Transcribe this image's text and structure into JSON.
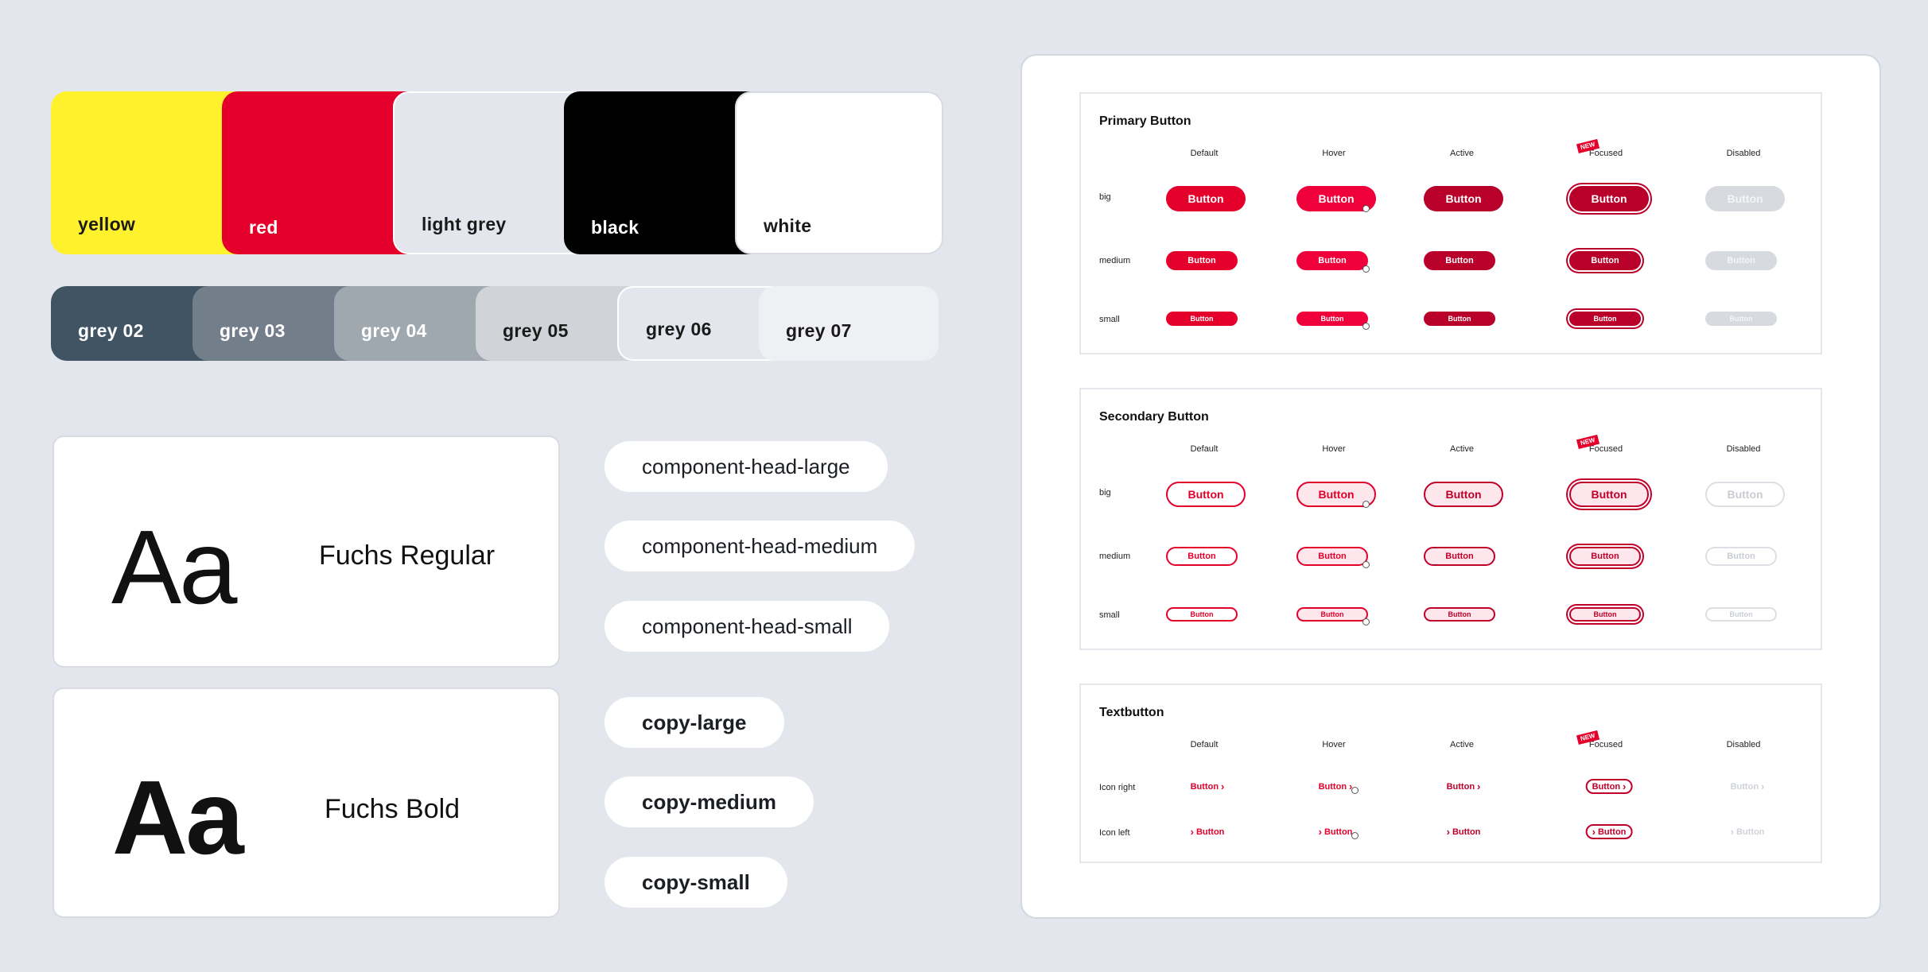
{
  "colors": {
    "primary": [
      {
        "label": "yellow",
        "hex": "#fff22d",
        "text": "#1a1a1a"
      },
      {
        "label": "red",
        "hex": "#e4002b",
        "text": "#ffffff"
      },
      {
        "label": "light grey",
        "hex": "#e3e7ed",
        "text": "#1a1a1a"
      },
      {
        "label": "black",
        "hex": "#000000",
        "text": "#ffffff"
      },
      {
        "label": "white",
        "hex": "#ffffff",
        "text": "#1a1a1a"
      }
    ],
    "greys": [
      {
        "label": "grey 02",
        "hex": "#415463",
        "text": "#ffffff"
      },
      {
        "label": "grey 03",
        "hex": "#727e89",
        "text": "#ffffff"
      },
      {
        "label": "grey 04",
        "hex": "#a0a8af",
        "text": "#ffffff"
      },
      {
        "label": "grey 05",
        "hex": "#d0d4d9",
        "text": "#1a1a1a"
      },
      {
        "label": "grey 06",
        "hex": "#e3e7ed",
        "text": "#1a1a1a"
      },
      {
        "label": "grey 07",
        "hex": "#eef0f3",
        "text": "#1a1a1a"
      }
    ]
  },
  "typography": {
    "regular": {
      "sample": "Aa",
      "name": "Fuchs Regular"
    },
    "bold": {
      "sample": "Aa",
      "name": "Fuchs Bold"
    },
    "styles": [
      "component-head-large",
      "component-head-medium",
      "component-head-small",
      "copy-large",
      "copy-medium",
      "copy-small"
    ]
  },
  "buttons": {
    "columns": [
      "Default",
      "Hover",
      "Active",
      "Focused",
      "Disabled"
    ],
    "new_badge": "NEW",
    "button_label": "Button",
    "primary": {
      "title": "Primary Button",
      "rows": [
        "big",
        "medium",
        "small"
      ]
    },
    "secondary": {
      "title": "Secondary Button",
      "rows": [
        "big",
        "medium",
        "small"
      ]
    },
    "text": {
      "title": "Textbutton",
      "rows": [
        "Icon right",
        "Icon left"
      ]
    }
  }
}
